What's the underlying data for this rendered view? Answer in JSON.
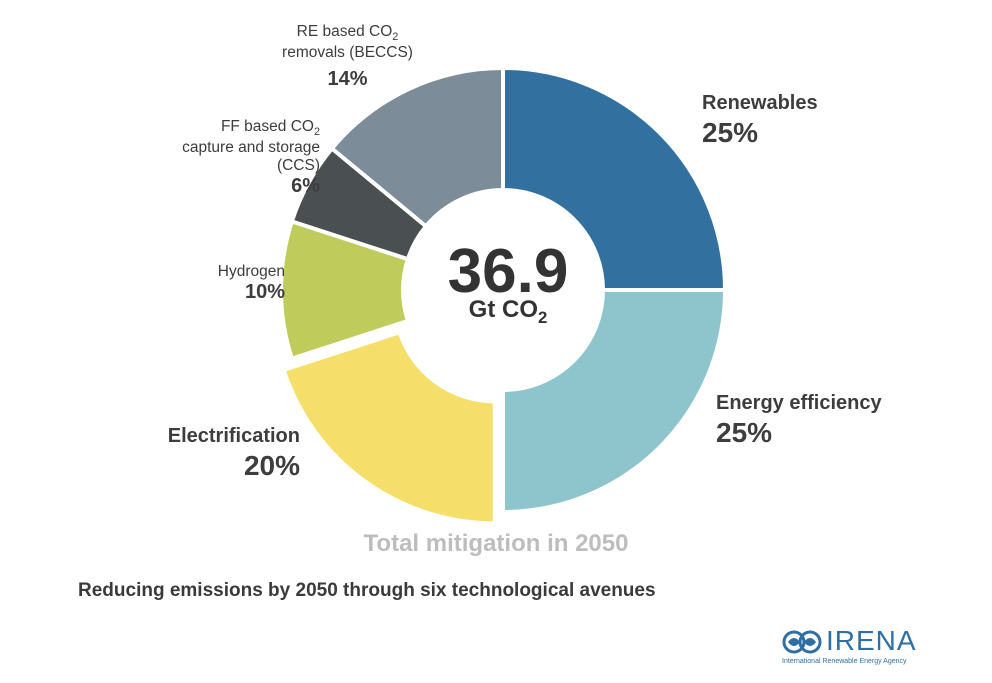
{
  "chart_data": {
    "type": "pie",
    "variant": "donut",
    "center_value": "36.9",
    "center_unit": "Gt CO",
    "center_unit_sub": "2",
    "subtitle": "Total mitigation in 2050",
    "caption": "Reducing emissions by 2050 through six technological avenues",
    "slices": [
      {
        "name": "Renewables",
        "value": 25,
        "label": "25%",
        "color": "#31709f"
      },
      {
        "name": "Energy efficiency",
        "value": 25,
        "label": "25%",
        "color": "#8ec4cb"
      },
      {
        "name": "Electrification",
        "value": 20,
        "label": "20%",
        "color": "#f5df6a",
        "explode": true
      },
      {
        "name": "Hydrogen",
        "value": 10,
        "label": "10%",
        "color": "#bfcc5c"
      },
      {
        "name": "FF based CO2 capture and storage (CCS)",
        "value": 6,
        "label": "6%",
        "color": "#4a4f52"
      },
      {
        "name": "RE based CO2 removals (BECCS)",
        "value": 14,
        "label": "14%",
        "color": "#7c8c98"
      }
    ],
    "labels": {
      "renewables": {
        "name": "Renewables",
        "pct": "25%"
      },
      "efficiency": {
        "name": "Energy efficiency",
        "pct": "25%"
      },
      "electrification": {
        "name": "Electrification",
        "pct": "20%"
      },
      "hydrogen": {
        "name": "Hydrogen",
        "pct": "10%"
      },
      "ccs": {
        "line1a": "FF based CO",
        "line1sub": "2",
        "line2": "capture and storage",
        "line3": "(CCS)",
        "pct": "6%"
      },
      "beccs": {
        "line1a": "RE based CO",
        "line1sub": "2",
        "line2": "removals (BECCS)",
        "pct": "14%"
      }
    }
  },
  "logo": {
    "name": "IRENA",
    "subtitle": "International Renewable Energy Agency",
    "icon": "globe-leaf-icon",
    "color": "#2f6fa3"
  }
}
